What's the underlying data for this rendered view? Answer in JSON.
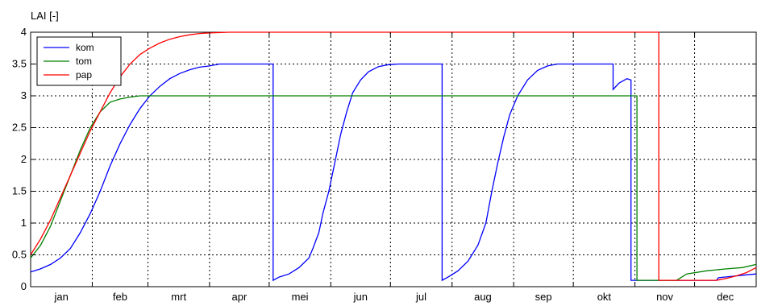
{
  "chart_data": {
    "type": "line",
    "title": "",
    "ylabel": "LAI [-]",
    "xlabel": "",
    "ylim": [
      0,
      4
    ],
    "yticks": [
      0,
      0.5,
      1,
      1.5,
      2,
      2.5,
      3,
      3.5,
      4
    ],
    "ytick_labels": [
      "0",
      "0.5",
      "1",
      "1.5",
      "2",
      "2.5",
      "3",
      "3.5",
      "4"
    ],
    "xlim": [
      0,
      365
    ],
    "months": [
      "jan",
      "feb",
      "mrt",
      "apr",
      "mei",
      "jun",
      "jul",
      "aug",
      "sep",
      "okt",
      "nov",
      "dec"
    ],
    "month_starts": [
      0,
      31,
      59,
      90,
      120,
      151,
      181,
      212,
      243,
      273,
      304,
      334,
      365
    ],
    "grid": true,
    "legend_position": "top-left",
    "series": [
      {
        "name": "kom",
        "color": "#0000ff",
        "points": [
          [
            0,
            0.23
          ],
          [
            5,
            0.28
          ],
          [
            10,
            0.35
          ],
          [
            15,
            0.45
          ],
          [
            20,
            0.6
          ],
          [
            25,
            0.85
          ],
          [
            30,
            1.15
          ],
          [
            35,
            1.5
          ],
          [
            40,
            1.9
          ],
          [
            45,
            2.25
          ],
          [
            50,
            2.55
          ],
          [
            55,
            2.8
          ],
          [
            60,
            3.0
          ],
          [
            65,
            3.15
          ],
          [
            70,
            3.27
          ],
          [
            75,
            3.35
          ],
          [
            80,
            3.41
          ],
          [
            85,
            3.45
          ],
          [
            90,
            3.47
          ],
          [
            95,
            3.5
          ],
          [
            122,
            3.5
          ],
          [
            122,
            0.1
          ],
          [
            125,
            0.15
          ],
          [
            130,
            0.2
          ],
          [
            135,
            0.3
          ],
          [
            140,
            0.45
          ],
          [
            142,
            0.6
          ],
          [
            145,
            0.85
          ],
          [
            147,
            1.15
          ],
          [
            150,
            1.5
          ],
          [
            153,
            1.95
          ],
          [
            156,
            2.4
          ],
          [
            159,
            2.75
          ],
          [
            162,
            3.05
          ],
          [
            166,
            3.25
          ],
          [
            170,
            3.38
          ],
          [
            175,
            3.46
          ],
          [
            180,
            3.49
          ],
          [
            185,
            3.5
          ],
          [
            207,
            3.5
          ],
          [
            207,
            0.1
          ],
          [
            210,
            0.15
          ],
          [
            215,
            0.25
          ],
          [
            220,
            0.4
          ],
          [
            225,
            0.65
          ],
          [
            229,
            1.0
          ],
          [
            232,
            1.5
          ],
          [
            235,
            1.95
          ],
          [
            238,
            2.35
          ],
          [
            241,
            2.7
          ],
          [
            245,
            3.0
          ],
          [
            250,
            3.25
          ],
          [
            255,
            3.4
          ],
          [
            260,
            3.47
          ],
          [
            265,
            3.5
          ],
          [
            293,
            3.5
          ],
          [
            293,
            3.1
          ],
          [
            296,
            3.2
          ],
          [
            300,
            3.27
          ],
          [
            302,
            3.25
          ],
          [
            302,
            0.1
          ],
          [
            336,
            0.1
          ],
          [
            345,
            0.1
          ],
          [
            346,
            0.14
          ],
          [
            352,
            0.16
          ],
          [
            358,
            0.18
          ],
          [
            365,
            0.2
          ]
        ]
      },
      {
        "name": "tom",
        "color": "#008000",
        "points": [
          [
            0,
            0.45
          ],
          [
            5,
            0.65
          ],
          [
            10,
            0.95
          ],
          [
            15,
            1.35
          ],
          [
            20,
            1.75
          ],
          [
            25,
            2.15
          ],
          [
            30,
            2.5
          ],
          [
            35,
            2.75
          ],
          [
            40,
            2.9
          ],
          [
            45,
            2.95
          ],
          [
            50,
            2.98
          ],
          [
            55,
            3.0
          ],
          [
            305,
            3.0
          ],
          [
            305,
            0.1
          ],
          [
            325,
            0.1
          ],
          [
            330,
            0.2
          ],
          [
            340,
            0.25
          ],
          [
            350,
            0.28
          ],
          [
            358,
            0.3
          ],
          [
            365,
            0.35
          ]
        ]
      },
      {
        "name": "pap",
        "color": "#ff0000",
        "points": [
          [
            0,
            0.5
          ],
          [
            5,
            0.75
          ],
          [
            10,
            1.05
          ],
          [
            15,
            1.4
          ],
          [
            20,
            1.75
          ],
          [
            25,
            2.1
          ],
          [
            30,
            2.45
          ],
          [
            35,
            2.75
          ],
          [
            40,
            3.05
          ],
          [
            45,
            3.3
          ],
          [
            50,
            3.5
          ],
          [
            55,
            3.65
          ],
          [
            60,
            3.75
          ],
          [
            65,
            3.83
          ],
          [
            70,
            3.89
          ],
          [
            75,
            3.93
          ],
          [
            80,
            3.96
          ],
          [
            85,
            3.98
          ],
          [
            90,
            3.99
          ],
          [
            100,
            4.0
          ],
          [
            316,
            4.0
          ],
          [
            316,
            0.1
          ],
          [
            345,
            0.1
          ],
          [
            350,
            0.13
          ],
          [
            355,
            0.17
          ],
          [
            360,
            0.22
          ],
          [
            365,
            0.3
          ]
        ]
      }
    ]
  }
}
